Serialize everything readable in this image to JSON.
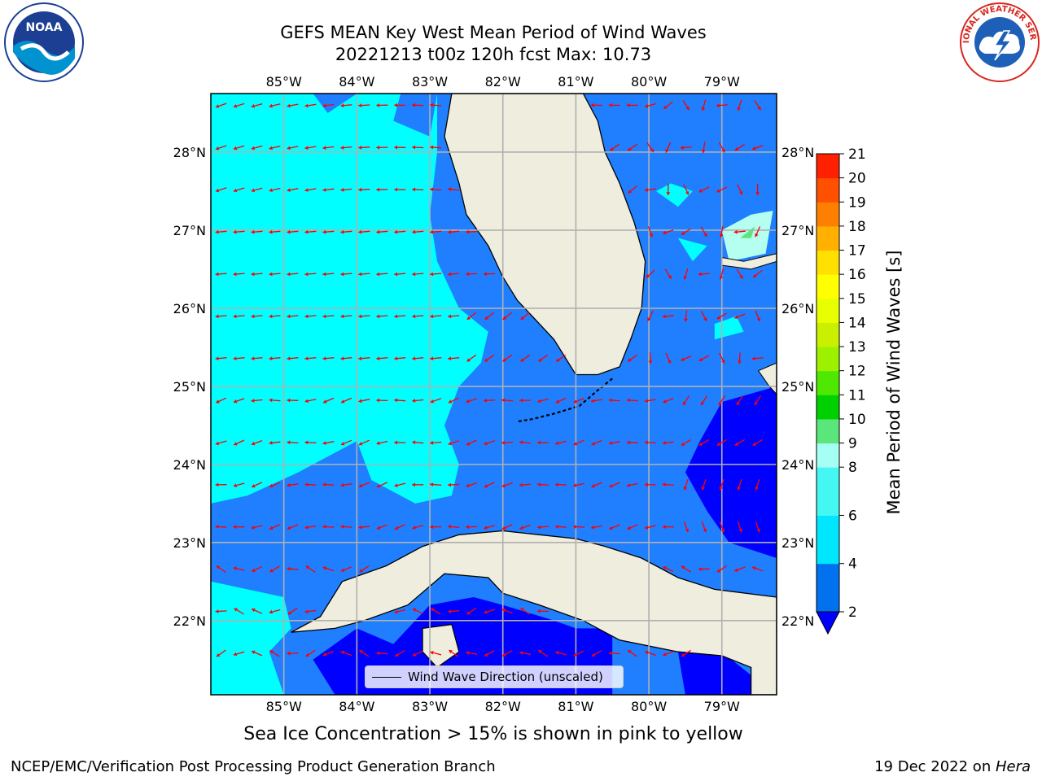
{
  "title": {
    "line1": "GEFS MEAN Key West Mean Period of Wind Waves",
    "line2": "20221213 t00z 120h fcst   Max: 10.73"
  },
  "logos": {
    "left": "noaa-logo",
    "left_text": "NOAA",
    "right": "national-weather-service-logo",
    "right_text": "NATIONAL WEATHER SERVICE"
  },
  "map": {
    "lon_ticks": [
      "85°W",
      "84°W",
      "83°W",
      "82°W",
      "81°W",
      "80°W",
      "79°W"
    ],
    "lon_values": [
      -85,
      -84,
      -83,
      -82,
      -81,
      -80,
      -79
    ],
    "lat_ticks": [
      "22°N",
      "23°N",
      "24°N",
      "25°N",
      "26°N",
      "27°N",
      "28°N"
    ],
    "lat_values": [
      22,
      23,
      24,
      25,
      26,
      27,
      28
    ],
    "extent": {
      "lon_min": -86,
      "lon_max": -78.25,
      "lat_min": 21.05,
      "lat_max": 28.75
    },
    "land_color": "#efedde",
    "coast_color": "#000000",
    "grid_color": "#b0b0b0",
    "arrow_color": "#ff0000"
  },
  "legend": {
    "label": "Wind Wave Direction (unscaled)"
  },
  "colorbar": {
    "label": "Mean Period of Wind Waves [s]",
    "levels": [
      2,
      3,
      4,
      5,
      6,
      7,
      8,
      9,
      10,
      11,
      12,
      13,
      14,
      15,
      16,
      17,
      18,
      19,
      20,
      21
    ],
    "tick_labels": [
      "2",
      "4",
      "6",
      "8",
      "9",
      "10",
      "11",
      "12",
      "13",
      "14",
      "15",
      "16",
      "17",
      "18",
      "19",
      "20",
      "21"
    ],
    "tick_values": [
      2,
      4,
      6,
      8,
      9,
      10,
      11,
      12,
      13,
      14,
      15,
      16,
      17,
      18,
      19,
      20,
      21
    ],
    "band_colors": [
      "#0072f0",
      "#0072f0",
      "#00e6ff",
      "#00e6ff",
      "#44f7f3",
      "#44f7f3",
      "#a5fff5",
      "#5ae67b",
      "#00d000",
      "#4ee800",
      "#9cf000",
      "#c8f000",
      "#e8ff00",
      "#ffff00",
      "#ffe000",
      "#ffb000",
      "#ff8000",
      "#ff5000",
      "#ff2000"
    ],
    "under_color": "#0000ff"
  },
  "period_colors": {
    "deep_blue": "#0000ff",
    "mid_blue": "#1f7fff",
    "cyan": "#00ffff",
    "light_cyan": "#b4fff0",
    "green": "#5ae67b"
  },
  "subcaption": "Sea Ice Concentration > 15% is shown in pink to yellow",
  "footer": {
    "left": "NCEP/EMC/Verification Post Processing Product Generation Branch",
    "right_date": "19 Dec 2022 on ",
    "right_machine": "Hera"
  }
}
